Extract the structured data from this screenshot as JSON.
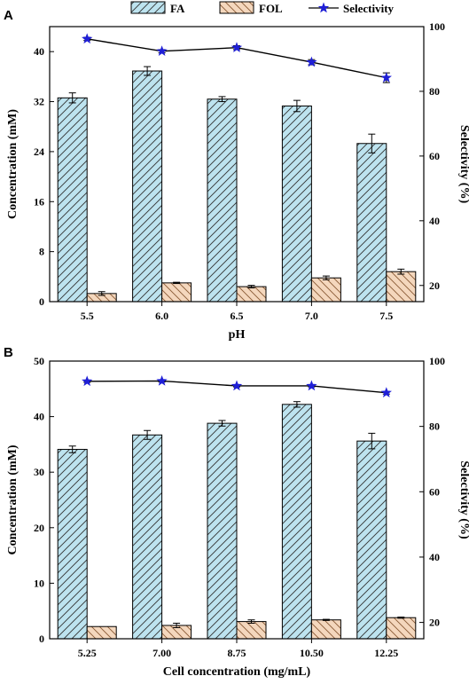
{
  "colors": {
    "fa_fill": "#bde3ef",
    "fol_fill": "#f4d7bd",
    "selectivity_line": "#000000",
    "selectivity_marker": "#1f1fd6",
    "axis": "#000000"
  },
  "legend": {
    "items": [
      {
        "label": "FA",
        "type": "bar",
        "color": "#bde3ef"
      },
      {
        "label": "FOL",
        "type": "bar",
        "color": "#f4d7bd"
      },
      {
        "label": "Selectivity",
        "type": "line-star",
        "color": "#1f1fd6"
      }
    ]
  },
  "chart_data": [
    {
      "panel": "A",
      "type": "bar",
      "xlabel": "pH",
      "ylabel": "Concentration (mM)",
      "y2label": "Selectivity (%)",
      "categories": [
        "5.5",
        "6.0",
        "6.5",
        "7.0",
        "7.5"
      ],
      "ylim": [
        0,
        44
      ],
      "yticks": [
        0,
        8,
        16,
        24,
        32,
        40
      ],
      "y2lim": [
        15,
        100
      ],
      "y2ticks": [
        20,
        40,
        60,
        80,
        100
      ],
      "series": [
        {
          "name": "FA",
          "values": [
            32.6,
            36.9,
            32.4,
            31.3,
            25.3
          ],
          "errors": [
            0.8,
            0.7,
            0.4,
            0.9,
            1.5
          ]
        },
        {
          "name": "FOL",
          "values": [
            1.3,
            3.0,
            2.4,
            3.8,
            4.8
          ],
          "errors": [
            0.3,
            0.1,
            0.2,
            0.3,
            0.4
          ]
        },
        {
          "name": "Selectivity",
          "values": [
            96.2,
            92.4,
            93.5,
            89.0,
            84.2
          ],
          "errors": [
            0.5,
            0.5,
            0.6,
            0.8,
            1.5
          ]
        }
      ]
    },
    {
      "panel": "B",
      "type": "bar",
      "xlabel": "Cell concentration (mg/mL)",
      "ylabel": "Concentration (mM)",
      "y2label": "Selectivity (%)",
      "categories": [
        "5.25",
        "7.00",
        "8.75",
        "10.50",
        "12.25"
      ],
      "ylim": [
        0,
        50
      ],
      "yticks": [
        0,
        10,
        20,
        30,
        40,
        50
      ],
      "y2lim": [
        15,
        100
      ],
      "y2ticks": [
        20,
        40,
        60,
        80,
        100
      ],
      "series": [
        {
          "name": "FA",
          "values": [
            34.1,
            36.7,
            38.8,
            42.2,
            35.6
          ],
          "errors": [
            0.6,
            0.8,
            0.5,
            0.5,
            1.4
          ]
        },
        {
          "name": "FOL",
          "values": [
            2.2,
            2.4,
            3.1,
            3.4,
            3.8
          ],
          "errors": [
            0.0,
            0.4,
            0.3,
            0.1,
            0.1
          ]
        },
        {
          "name": "Selectivity",
          "values": [
            93.8,
            93.9,
            92.4,
            92.4,
            90.3
          ],
          "errors": [
            0.3,
            0.3,
            0.3,
            0.3,
            0.4
          ]
        }
      ]
    }
  ]
}
